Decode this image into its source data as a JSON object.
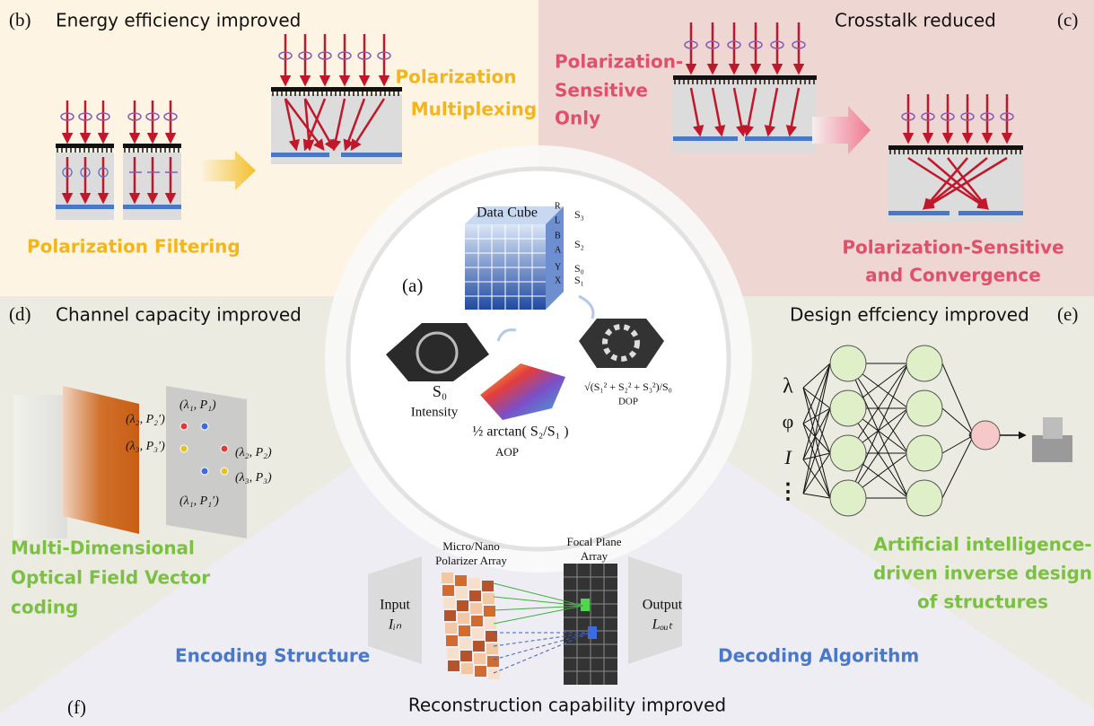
{
  "panel_a": {
    "label": "(a)",
    "cube_title": "Data Cube",
    "cube_channels": [
      "R",
      "L",
      "B",
      "A",
      "Y",
      "X"
    ],
    "stokes": [
      "S₃",
      "S₂",
      "S₀",
      "S₁"
    ],
    "intensity": [
      "S₀",
      "Intensity"
    ],
    "dop": [
      "√(S₁² + S₂² + S₃²)/S₀",
      "DOP"
    ],
    "aop": [
      "½ arctan( S₂/S₁ )",
      "AOP"
    ]
  },
  "panel_b": {
    "label": "(b)",
    "title": "Energy efficiency improved",
    "before": "Polarization Filtering",
    "after": [
      "Polarization",
      "Multiplexing"
    ]
  },
  "panel_c": {
    "label": "(c)",
    "title": "Crosstalk reduced",
    "before": [
      "Polarization-",
      "Sensitive",
      "Only"
    ],
    "after": [
      "Polarization-Sensitive",
      "and Convergence"
    ]
  },
  "panel_d": {
    "label": "(d)",
    "title": "Channel capacity improved",
    "points": [
      "(λ₁, P₁)",
      "(λ₂, P₂′)",
      "(λ₃, P₃′)",
      "(λ₂, P₂)",
      "(λ₃, P₃)",
      "(λ₁, P₁′)"
    ],
    "caption": [
      "Multi-Dimensional",
      "Optical Field Vector",
      "coding"
    ]
  },
  "panel_e": {
    "label": "(e)",
    "title": "Design effciency improved",
    "inputs": [
      "λ",
      "φ",
      "I",
      "⋮"
    ],
    "caption": [
      "Artificial intelligence-",
      "driven inverse design",
      "of structures"
    ]
  },
  "panel_f": {
    "label": "(f)",
    "title": "Reconstruction capability improved",
    "polarizer": [
      "Micro/Nano",
      "Polarizer Array"
    ],
    "focal": [
      "Focal Plane",
      "Array"
    ],
    "input": [
      "Input",
      "Iᵢₙ"
    ],
    "output": [
      "Output",
      "Lₒᵤₜ"
    ],
    "encoding": "Encoding Structure",
    "decoding": "Decoding Algorithm"
  }
}
